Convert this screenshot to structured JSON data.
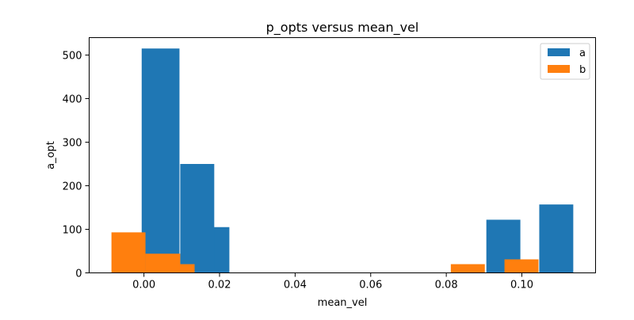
{
  "chart_data": {
    "type": "bar",
    "title": "p_opts versus mean_vel",
    "xlabel": "mean_vel",
    "ylabel": "a_opt",
    "xlim": [
      -0.0145,
      0.1195
    ],
    "ylim": [
      0,
      540
    ],
    "xticks": [
      0.0,
      0.02,
      0.04,
      0.06,
      0.08,
      0.1
    ],
    "xtick_labels": [
      "0.00",
      "0.02",
      "0.04",
      "0.06",
      "0.08",
      "0.10"
    ],
    "yticks": [
      0,
      100,
      200,
      300,
      400,
      500
    ],
    "ytick_labels": [
      "0",
      "100",
      "200",
      "300",
      "400",
      "500"
    ],
    "grid": false,
    "legend_position": "top-right",
    "series": [
      {
        "name": "a",
        "color": "#1f77b4",
        "bars": [
          {
            "x0": 0.0126,
            "x1": 0.0226,
            "value": 105
          },
          {
            "x0": 0.0096,
            "x1": 0.0186,
            "value": 250
          },
          {
            "x0": -0.0006,
            "x1": 0.0094,
            "value": 515
          },
          {
            "x0": 0.0906,
            "x1": 0.0996,
            "value": 122
          },
          {
            "x0": 0.1046,
            "x1": 0.1136,
            "value": 157
          }
        ]
      },
      {
        "name": "b",
        "color": "#ff7f0e",
        "bars": [
          {
            "x0": -0.0086,
            "x1": 0.0004,
            "value": 93
          },
          {
            "x0": 0.0004,
            "x1": 0.0096,
            "value": 44
          },
          {
            "x0": 0.0094,
            "x1": 0.0134,
            "value": 20
          },
          {
            "x0": 0.0812,
            "x1": 0.0902,
            "value": 20
          },
          {
            "x0": 0.0954,
            "x1": 0.1044,
            "value": 31
          }
        ]
      }
    ]
  }
}
